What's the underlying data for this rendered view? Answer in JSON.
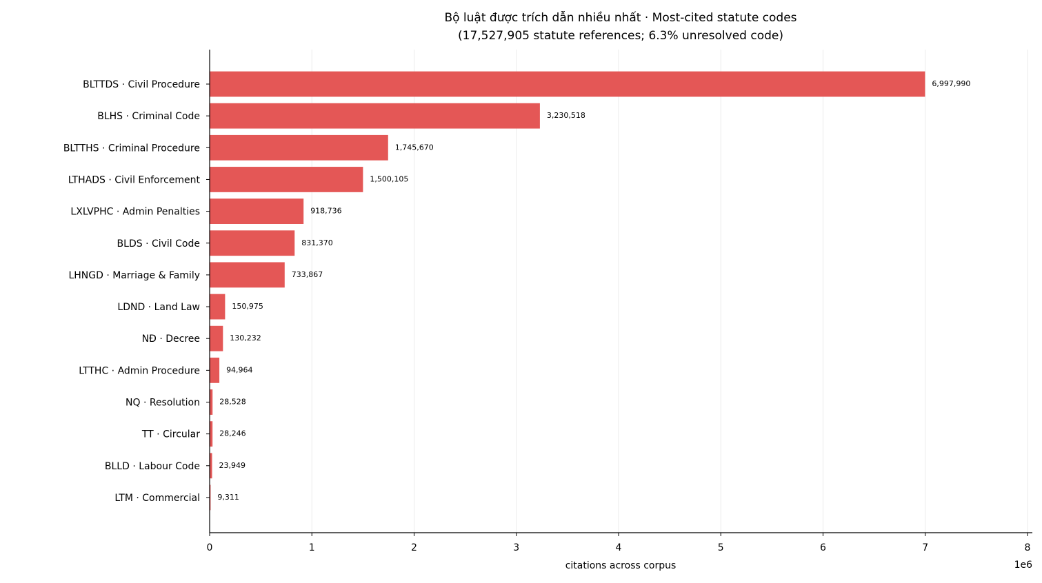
{
  "chart_data": {
    "type": "barh",
    "title": "Bộ luật được trích dẫn nhiều nhất · Most-cited statute codes",
    "subtitle": "(17,527,905 statute references; 6.3% unresolved code)",
    "x_label": "citations across corpus",
    "x_offset_label": "1e6",
    "categories": [
      "BLTTDS · Civil Procedure",
      "BLHS · Criminal Code",
      "BLTTHS · Criminal Procedure",
      "LTHADS · Civil Enforcement",
      "LXLVPHC · Admin Penalties",
      "BLDS · Civil Code",
      "LHNGD · Marriage & Family",
      "LDND · Land Law",
      "NĐ · Decree",
      "LTTHC · Admin Procedure",
      "NQ · Resolution",
      "TT · Circular",
      "BLLD · Labour Code",
      "LTM · Commercial"
    ],
    "values": [
      6997990,
      3230518,
      1745670,
      1500105,
      918736,
      831370,
      733867,
      150975,
      130232,
      94964,
      28528,
      28246,
      23949,
      9311
    ],
    "value_labels": [
      "6,997,990",
      "3,230,518",
      "1,745,670",
      "1,500,105",
      "918,736",
      "831,370",
      "733,867",
      "150,975",
      "130,232",
      "94,964",
      "28,528",
      "28,246",
      "23,949",
      "9,311"
    ],
    "color": "#e45756",
    "xlim": [
      0,
      8047688
    ],
    "xticks": [
      0,
      {
        "value": 1000000,
        "label": "1"
      },
      {
        "value": 2000000,
        "label": "2"
      },
      {
        "value": 3000000,
        "label": "3"
      },
      {
        "value": 4000000,
        "label": "4"
      },
      {
        "value": 5000000,
        "label": "5"
      },
      {
        "value": 6000000,
        "label": "6"
      },
      {
        "value": 7000000,
        "label": "7"
      },
      {
        "value": 8000000,
        "label": "8"
      }
    ],
    "grid": true
  }
}
